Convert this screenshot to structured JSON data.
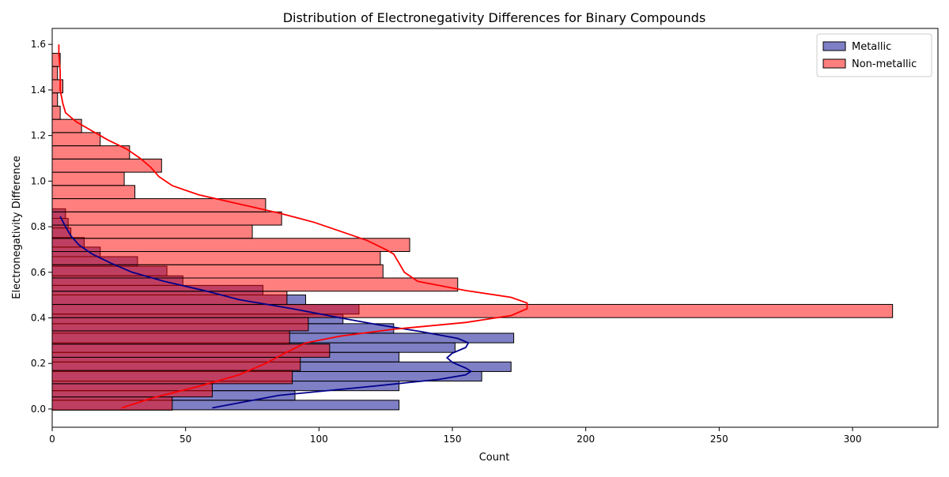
{
  "chart_data": {
    "type": "bar",
    "orientation": "horizontal",
    "title": "Distribution of Electronegativity Differences for Binary Compounds",
    "xlabel": "Count",
    "ylabel": "Electronegativity Difference",
    "xlim": [
      0,
      332
    ],
    "ylim": [
      -0.08,
      1.67
    ],
    "xticks": [
      0,
      50,
      100,
      150,
      200,
      250,
      300
    ],
    "yticks": [
      0.0,
      0.2,
      0.4,
      0.6,
      0.8,
      1.0,
      1.2,
      1.4,
      1.6
    ],
    "xtick_labels": [
      "0",
      "50",
      "100",
      "150",
      "200",
      "250",
      "300"
    ],
    "ytick_labels": [
      "0.0",
      "0.2",
      "0.4",
      "0.6",
      "0.8",
      "1.0",
      "1.2",
      "1.4",
      "1.6"
    ],
    "grid": false,
    "legend": {
      "position": "top-right"
    },
    "series": [
      {
        "name": "Metallic",
        "color": "#00008b",
        "fill": "rgba(0,0,139,0.5)",
        "bin_width": 0.042,
        "bin_start": -0.0035,
        "counts": [
          130,
          91,
          130,
          161,
          172,
          130,
          151,
          173,
          128,
          109,
          115,
          95,
          79,
          49,
          43,
          32,
          18,
          12,
          7,
          6,
          5
        ],
        "kde": [
          [
            0.005,
            60
          ],
          [
            0.06,
            85
          ],
          [
            0.1,
            120
          ],
          [
            0.13,
            145
          ],
          [
            0.15,
            155
          ],
          [
            0.165,
            157
          ],
          [
            0.18,
            155
          ],
          [
            0.205,
            150
          ],
          [
            0.225,
            148
          ],
          [
            0.245,
            150
          ],
          [
            0.27,
            155
          ],
          [
            0.29,
            156
          ],
          [
            0.31,
            152
          ],
          [
            0.34,
            138
          ],
          [
            0.37,
            122
          ],
          [
            0.4,
            108
          ],
          [
            0.44,
            90
          ],
          [
            0.48,
            70
          ],
          [
            0.52,
            57
          ],
          [
            0.56,
            42
          ],
          [
            0.6,
            30
          ],
          [
            0.64,
            22
          ],
          [
            0.68,
            15
          ],
          [
            0.72,
            10
          ],
          [
            0.76,
            7
          ],
          [
            0.8,
            5
          ],
          [
            0.845,
            3
          ]
        ]
      },
      {
        "name": "Non-metallic",
        "color": "#ff0000",
        "fill": "rgba(255,0,0,0.5)",
        "bin_width": 0.058,
        "bin_start": -0.005,
        "counts": [
          45,
          60,
          90,
          93,
          104,
          89,
          96,
          315,
          88,
          152,
          124,
          123,
          134,
          75,
          86,
          80,
          31,
          27,
          41,
          29,
          18,
          11,
          3,
          2,
          4,
          2,
          3
        ],
        "kde": [
          [
            0.005,
            26
          ],
          [
            0.05,
            38
          ],
          [
            0.1,
            55
          ],
          [
            0.15,
            70
          ],
          [
            0.2,
            80
          ],
          [
            0.25,
            88
          ],
          [
            0.29,
            95
          ],
          [
            0.32,
            108
          ],
          [
            0.35,
            128
          ],
          [
            0.38,
            155
          ],
          [
            0.41,
            172
          ],
          [
            0.44,
            178
          ],
          [
            0.465,
            178
          ],
          [
            0.49,
            172
          ],
          [
            0.52,
            155
          ],
          [
            0.56,
            137
          ],
          [
            0.6,
            132
          ],
          [
            0.64,
            130
          ],
          [
            0.68,
            128
          ],
          [
            0.7,
            125
          ],
          [
            0.74,
            118
          ],
          [
            0.78,
            108
          ],
          [
            0.82,
            98
          ],
          [
            0.86,
            85
          ],
          [
            0.9,
            70
          ],
          [
            0.94,
            55
          ],
          [
            0.98,
            45
          ],
          [
            1.02,
            40
          ],
          [
            1.06,
            37
          ],
          [
            1.1,
            33
          ],
          [
            1.14,
            28
          ],
          [
            1.18,
            21
          ],
          [
            1.22,
            15
          ],
          [
            1.26,
            9
          ],
          [
            1.3,
            5
          ],
          [
            1.34,
            4
          ],
          [
            1.4,
            3
          ],
          [
            1.48,
            3
          ],
          [
            1.56,
            2.5
          ],
          [
            1.6,
            2.5
          ]
        ]
      }
    ]
  }
}
